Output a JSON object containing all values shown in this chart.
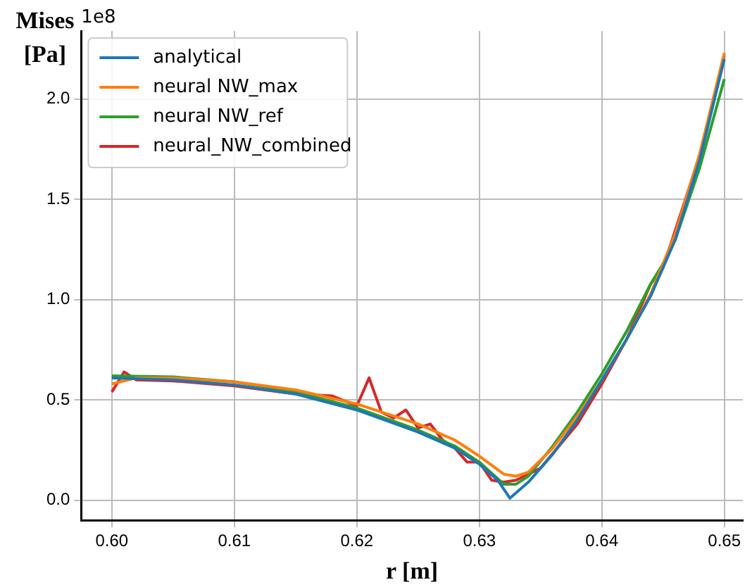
{
  "chart_data": {
    "type": "line",
    "xlabel": "r [m]",
    "ylabel": "Mises [Pa]",
    "annotations": [
      "1e8"
    ],
    "xlim": [
      0.5975,
      0.6515
    ],
    "xticks": [
      {
        "value": 0.6,
        "label": "0.60"
      },
      {
        "value": 0.61,
        "label": "0.61"
      },
      {
        "value": 0.62,
        "label": "0.62"
      },
      {
        "value": 0.63,
        "label": "0.63"
      },
      {
        "value": 0.64,
        "label": "0.64"
      },
      {
        "value": 0.65,
        "label": "0.65"
      }
    ],
    "ylim": [
      -0.1,
      2.34
    ],
    "yticks": [
      {
        "value": 0,
        "label": "0.0"
      },
      {
        "value": 0.5,
        "label": "0.5"
      },
      {
        "value": 1,
        "label": "1.0"
      },
      {
        "value": 1.5,
        "label": "1.5"
      },
      {
        "value": 2,
        "label": "2.0"
      }
    ],
    "grid": true,
    "legend": "top left",
    "marker": "none",
    "line_style": "solid",
    "series": [
      {
        "name": "analytical",
        "color": "#1f77b4",
        "x": [
          0.6,
          0.605,
          0.61,
          0.615,
          0.62,
          0.625,
          0.628,
          0.63,
          0.6315,
          0.6325,
          0.634,
          0.636,
          0.638,
          0.64,
          0.642,
          0.644,
          0.646,
          0.648,
          0.65
        ],
        "values": [
          0.61,
          0.6,
          0.575,
          0.53,
          0.45,
          0.34,
          0.26,
          0.18,
          0.1,
          0.01,
          0.09,
          0.23,
          0.4,
          0.6,
          0.8,
          1.02,
          1.3,
          1.7,
          2.2
        ]
      },
      {
        "name": "neural NW_max",
        "color": "#ff7f0e",
        "x": [
          0.6,
          0.602,
          0.605,
          0.61,
          0.615,
          0.62,
          0.625,
          0.628,
          0.63,
          0.632,
          0.633,
          0.634,
          0.636,
          0.638,
          0.64,
          0.642,
          0.644,
          0.646,
          0.648,
          0.65
        ],
        "values": [
          0.58,
          0.61,
          0.61,
          0.59,
          0.55,
          0.48,
          0.38,
          0.3,
          0.22,
          0.13,
          0.12,
          0.14,
          0.26,
          0.42,
          0.6,
          0.8,
          1.03,
          1.33,
          1.73,
          2.23
        ]
      },
      {
        "name": "neural NW_ref",
        "color": "#2ca02c",
        "x": [
          0.6,
          0.605,
          0.61,
          0.615,
          0.62,
          0.625,
          0.628,
          0.63,
          0.632,
          0.633,
          0.634,
          0.636,
          0.638,
          0.64,
          0.642,
          0.644,
          0.645,
          0.646,
          0.648,
          0.65
        ],
        "values": [
          0.62,
          0.615,
          0.59,
          0.54,
          0.46,
          0.35,
          0.27,
          0.19,
          0.08,
          0.08,
          0.12,
          0.27,
          0.44,
          0.63,
          0.84,
          1.08,
          1.18,
          1.3,
          1.66,
          2.1
        ]
      },
      {
        "name": "neural_NW_combined",
        "color": "#d62728",
        "x": [
          0.6,
          0.601,
          0.602,
          0.605,
          0.61,
          0.615,
          0.618,
          0.62,
          0.621,
          0.622,
          0.623,
          0.624,
          0.625,
          0.626,
          0.627,
          0.628,
          0.629,
          0.63,
          0.631,
          0.632,
          0.633,
          0.635,
          0.638,
          0.64,
          0.642,
          0.644,
          0.645,
          0.648,
          0.65
        ],
        "values": [
          0.54,
          0.64,
          0.6,
          0.595,
          0.57,
          0.53,
          0.52,
          0.47,
          0.61,
          0.44,
          0.41,
          0.45,
          0.36,
          0.38,
          0.3,
          0.26,
          0.19,
          0.19,
          0.1,
          0.09,
          0.1,
          0.16,
          0.38,
          0.58,
          0.8,
          1.08,
          1.16,
          1.72,
          2.22
        ]
      }
    ]
  }
}
